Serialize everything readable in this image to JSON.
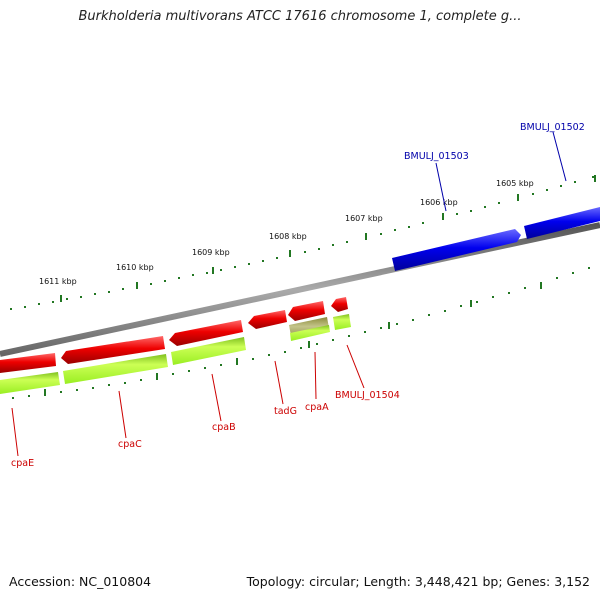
{
  "title": "Burkholderia multivorans ATCC 17616 chromosome 1, complete g...",
  "footer": {
    "accession": "Accession: NC_010804",
    "topology": "Topology: circular; Length: 3,448,421 bp; Genes: 3,152"
  },
  "kbp_labels": [
    "1611 kbp",
    "1610 kbp",
    "1609 kbp",
    "1608 kbp",
    "1607 kbp",
    "1606 kbp",
    "1605 kbp"
  ],
  "gene_labels": {
    "BMULJ_01502": "BMULJ_01502",
    "BMULJ_01503": "BMULJ_01503",
    "BMULJ_01504": "BMULJ_01504",
    "cpaE": "cpaE",
    "cpaC": "cpaC",
    "cpaB": "cpaB",
    "tadG": "tadG",
    "cpaA": "cpaA"
  },
  "colors": {
    "forward_gene": "#0000ee",
    "reverse_gene": "#ee0000",
    "reverse_cds": "#aaff33",
    "backbone": "#888888",
    "ticks": "#227722",
    "label_blue": "#0000aa",
    "label_red": "#cc0000"
  }
}
